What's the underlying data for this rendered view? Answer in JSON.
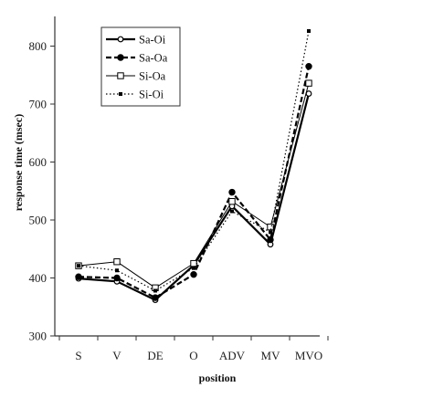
{
  "chart_data": {
    "type": "line",
    "categories": [
      "S",
      "V",
      "DE",
      "O",
      "ADV",
      "MV",
      "MVO"
    ],
    "title": "",
    "xlabel": "position",
    "ylabel": "response time (msec)",
    "ylim": [
      300,
      850
    ],
    "yticks": [
      300,
      400,
      500,
      600,
      700,
      800
    ],
    "grid": false,
    "legend_position": "top-left",
    "series": [
      {
        "name": "Sa-Oi",
        "values": [
          399,
          394,
          362,
          422,
          524,
          458,
          718
        ],
        "line_style": "solid-thick",
        "marker": "open-circle",
        "color": "#000000"
      },
      {
        "name": "Sa-Oa",
        "values": [
          402,
          400,
          366,
          406,
          548,
          466,
          765
        ],
        "line_style": "dashed-thick",
        "marker": "filled-circle",
        "color": "#000000"
      },
      {
        "name": "Si-Oa",
        "values": [
          421,
          428,
          383,
          425,
          532,
          488,
          736
        ],
        "line_style": "solid-thin",
        "marker": "open-square",
        "color": "#000000"
      },
      {
        "name": "Si-Oi",
        "values": [
          421,
          413,
          378,
          417,
          515,
          479,
          826
        ],
        "line_style": "dotted",
        "marker": "filled-square-small",
        "color": "#000000"
      }
    ]
  }
}
